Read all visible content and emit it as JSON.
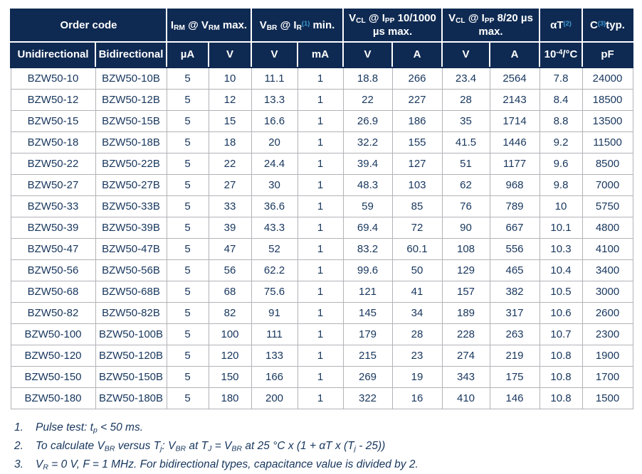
{
  "colors": {
    "header_bg": "#0F2A52",
    "header_text": "#ffffff",
    "superscript_blue": "#3C9CD7",
    "data_text": "#17365D",
    "grid_border": "#b3b3b8",
    "outer_border": "#9a9a9a",
    "page_bg": "#ffffff"
  },
  "table": {
    "header": {
      "groups": [
        {
          "name": "order-code",
          "colspan": 2,
          "segments": [
            {
              "t": "Order code"
            }
          ]
        },
        {
          "name": "irm-at-vrm-max",
          "colspan": 2,
          "segments": [
            {
              "t": "I"
            },
            {
              "t": "RM",
              "s": "sub"
            },
            {
              "t": " @ V"
            },
            {
              "t": "RM",
              "s": "sub"
            },
            {
              "t": " max."
            }
          ]
        },
        {
          "name": "vbr-at-ir-min",
          "colspan": 2,
          "segments": [
            {
              "t": "V"
            },
            {
              "t": "BR",
              "s": "sub"
            },
            {
              "t": " @ I"
            },
            {
              "t": "R",
              "s": "sub"
            },
            {
              "t": "(1)",
              "s": "suplink"
            },
            {
              "t": " min."
            }
          ]
        },
        {
          "name": "vcl-at-ipp-10-1000",
          "colspan": 2,
          "segments": [
            {
              "t": "V"
            },
            {
              "t": "CL",
              "s": "sub"
            },
            {
              "t": " @ I"
            },
            {
              "t": "PP",
              "s": "sub"
            },
            {
              "t": " 10/1000 µs max."
            }
          ]
        },
        {
          "name": "vcl-at-ipp-8-20",
          "colspan": 2,
          "segments": [
            {
              "t": "V"
            },
            {
              "t": "CL",
              "s": "sub"
            },
            {
              "t": " @ I"
            },
            {
              "t": "PP",
              "s": "sub"
            },
            {
              "t": " 8/20 µs max."
            }
          ]
        },
        {
          "name": "alpha-t",
          "colspan": 1,
          "segments": [
            {
              "t": "αT"
            },
            {
              "t": "(2)",
              "s": "suplink"
            }
          ]
        },
        {
          "name": "c-typ",
          "colspan": 1,
          "segments": [
            {
              "t": "C"
            },
            {
              "t": "(3)",
              "s": "suplink"
            },
            {
              "t": "typ."
            }
          ]
        }
      ],
      "units": [
        {
          "name": "unidirectional",
          "segments": [
            {
              "t": "Unidirectional"
            }
          ]
        },
        {
          "name": "bidirectional",
          "segments": [
            {
              "t": "Bidirectional"
            }
          ]
        },
        {
          "name": "ua",
          "segments": [
            {
              "t": "µA"
            }
          ]
        },
        {
          "name": "v-rm",
          "segments": [
            {
              "t": "V"
            }
          ]
        },
        {
          "name": "v-br",
          "segments": [
            {
              "t": "V"
            }
          ]
        },
        {
          "name": "ma",
          "segments": [
            {
              "t": "mA"
            }
          ]
        },
        {
          "name": "v-cl-10-1000",
          "segments": [
            {
              "t": "V"
            }
          ]
        },
        {
          "name": "a-10-1000",
          "segments": [
            {
              "t": "A"
            }
          ]
        },
        {
          "name": "v-cl-8-20",
          "segments": [
            {
              "t": "V"
            }
          ]
        },
        {
          "name": "a-8-20",
          "segments": [
            {
              "t": "A"
            }
          ]
        },
        {
          "name": "alpha-t-unit",
          "segments": [
            {
              "t": "10"
            },
            {
              "t": "-4",
              "s": "sup"
            },
            {
              "t": "/°C"
            }
          ]
        },
        {
          "name": "pf",
          "segments": [
            {
              "t": "pF"
            }
          ]
        }
      ]
    },
    "rows": [
      [
        "BZW50-10",
        "BZW50-10B",
        "5",
        "10",
        "11.1",
        "1",
        "18.8",
        "266",
        "23.4",
        "2564",
        "7.8",
        "24000"
      ],
      [
        "BZW50-12",
        "BZW50-12B",
        "5",
        "12",
        "13.3",
        "1",
        "22",
        "227",
        "28",
        "2143",
        "8.4",
        "18500"
      ],
      [
        "BZW50-15",
        "BZW50-15B",
        "5",
        "15",
        "16.6",
        "1",
        "26.9",
        "186",
        "35",
        "1714",
        "8.8",
        "13500"
      ],
      [
        "BZW50-18",
        "BZW50-18B",
        "5",
        "18",
        "20",
        "1",
        "32.2",
        "155",
        "41.5",
        "1446",
        "9.2",
        "11500"
      ],
      [
        "BZW50-22",
        "BZW50-22B",
        "5",
        "22",
        "24.4",
        "1",
        "39.4",
        "127",
        "51",
        "1177",
        "9.6",
        "8500"
      ],
      [
        "BZW50-27",
        "BZW50-27B",
        "5",
        "27",
        "30",
        "1",
        "48.3",
        "103",
        "62",
        "968",
        "9.8",
        "7000"
      ],
      [
        "BZW50-33",
        "BZW50-33B",
        "5",
        "33",
        "36.6",
        "1",
        "59",
        "85",
        "76",
        "789",
        "10",
        "5750"
      ],
      [
        "BZW50-39",
        "BZW50-39B",
        "5",
        "39",
        "43.3",
        "1",
        "69.4",
        "72",
        "90",
        "667",
        "10.1",
        "4800"
      ],
      [
        "BZW50-47",
        "BZW50-47B",
        "5",
        "47",
        "52",
        "1",
        "83.2",
        "60.1",
        "108",
        "556",
        "10.3",
        "4100"
      ],
      [
        "BZW50-56",
        "BZW50-56B",
        "5",
        "56",
        "62.2",
        "1",
        "99.6",
        "50",
        "129",
        "465",
        "10.4",
        "3400"
      ],
      [
        "BZW50-68",
        "BZW50-68B",
        "5",
        "68",
        "75.6",
        "1",
        "121",
        "41",
        "157",
        "382",
        "10.5",
        "3000"
      ],
      [
        "BZW50-82",
        "BZW50-82B",
        "5",
        "82",
        "91",
        "1",
        "145",
        "34",
        "189",
        "317",
        "10.6",
        "2600"
      ],
      [
        "BZW50-100",
        "BZW50-100B",
        "5",
        "100",
        "111",
        "1",
        "179",
        "28",
        "228",
        "263",
        "10.7",
        "2300"
      ],
      [
        "BZW50-120",
        "BZW50-120B",
        "5",
        "120",
        "133",
        "1",
        "215",
        "23",
        "274",
        "219",
        "10.8",
        "1900"
      ],
      [
        "BZW50-150",
        "BZW50-150B",
        "5",
        "150",
        "166",
        "1",
        "269",
        "19",
        "343",
        "175",
        "10.8",
        "1700"
      ],
      [
        "BZW50-180",
        "BZW50-180B",
        "5",
        "180",
        "200",
        "1",
        "322",
        "16",
        "410",
        "146",
        "10.8",
        "1500"
      ]
    ]
  },
  "footnotes": [
    {
      "number": "1.",
      "segments": [
        {
          "t": "Pulse test: t"
        },
        {
          "t": "p",
          "s": "sub"
        },
        {
          "t": " < 50 ms."
        }
      ]
    },
    {
      "number": "2.",
      "segments": [
        {
          "t": "To calculate V"
        },
        {
          "t": "BR",
          "s": "sub"
        },
        {
          "t": " versus T"
        },
        {
          "t": "j",
          "s": "sub"
        },
        {
          "t": ": V"
        },
        {
          "t": "BR",
          "s": "sub"
        },
        {
          "t": " at T"
        },
        {
          "t": "J",
          "s": "sub"
        },
        {
          "t": " = V"
        },
        {
          "t": "BR",
          "s": "sub"
        },
        {
          "t": " at 25 °C x (1 + αT x (T"
        },
        {
          "t": "j",
          "s": "sub"
        },
        {
          "t": " - 25))"
        }
      ]
    },
    {
      "number": "3.",
      "segments": [
        {
          "t": "V"
        },
        {
          "t": "R",
          "s": "sub"
        },
        {
          "t": " = 0 V, F = 1 MHz. For bidirectional types, capacitance value is divided by 2."
        }
      ]
    }
  ]
}
